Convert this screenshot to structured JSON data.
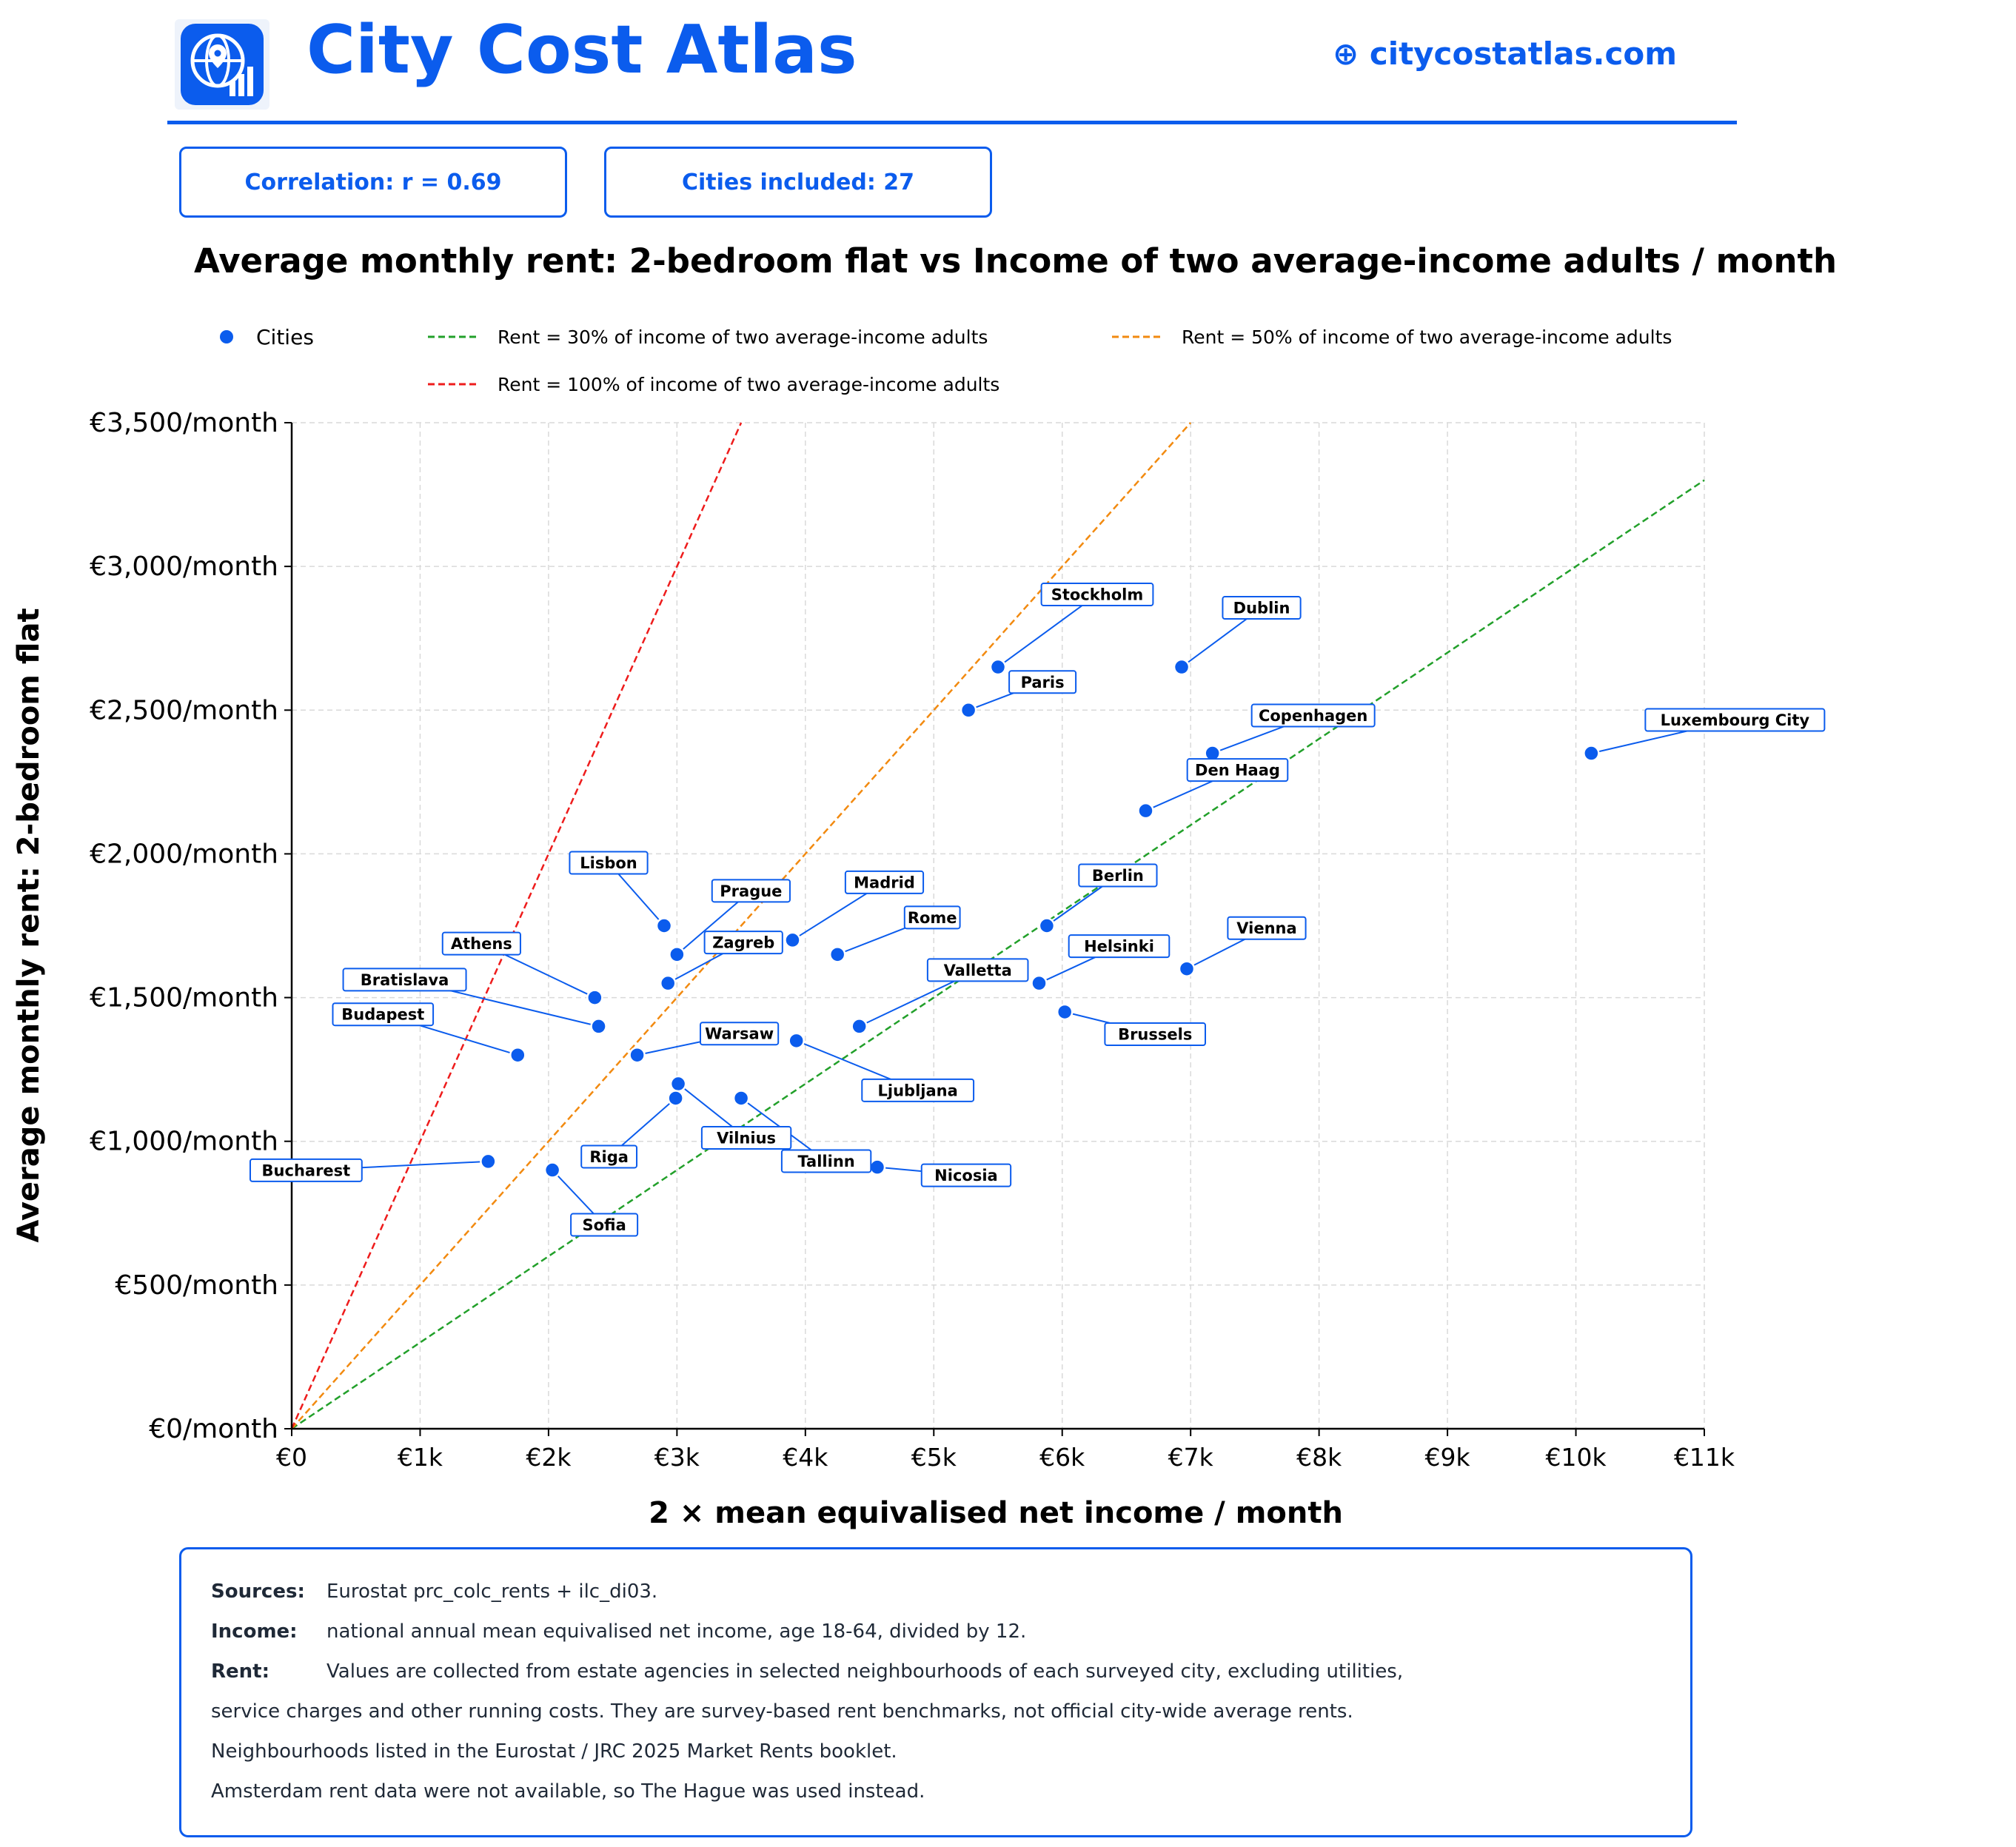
{
  "header": {
    "title": "City Cost Atlas",
    "website": "⊕ citycostatlas.com",
    "logo_icon": "globe-location-chart-icon"
  },
  "stats": {
    "correlation": "Correlation: r = 0.69",
    "cities": "Cities included: 27"
  },
  "notes": {
    "sources_label": "Sources:",
    "sources_text": "Eurostat prc_colc_rents + ilc_di03.",
    "income_label": "Income:",
    "income_text": "national annual mean equivalised net income, age 18-64, divided by 12.",
    "rent_label": "Rent:",
    "rent_text_1": "Values are collected from estate agencies in selected neighbourhoods of each surveyed city, excluding utilities,",
    "rent_text_2": "service charges and other running costs. They are survey-based rent benchmarks, not official city-wide average rents.",
    "line_3": "Neighbourhoods listed in the Eurostat / JRC 2025 Market Rents booklet.",
    "line_4": "Amsterdam rent data were not available, so The Hague was used instead."
  },
  "colors": {
    "accent": "#0b5ced",
    "point": "#0b5ced",
    "line_30": "#22a02a",
    "line_50": "#f28a10",
    "line_100": "#ee1c1c"
  },
  "chart_data": {
    "type": "scatter",
    "title": "Average monthly rent: 2-bedroom flat vs Income of two average-income adults / month",
    "xlabel": "2 × mean equivalised net income / month",
    "ylabel": "Average monthly rent: 2-bedroom flat",
    "xlim": [
      0,
      11000
    ],
    "ylim": [
      0,
      3500
    ],
    "x_ticks": [
      {
        "value": 0,
        "label": "€0"
      },
      {
        "value": 1000,
        "label": "€1k"
      },
      {
        "value": 2000,
        "label": "€2k"
      },
      {
        "value": 3000,
        "label": "€3k"
      },
      {
        "value": 4000,
        "label": "€4k"
      },
      {
        "value": 5000,
        "label": "€5k"
      },
      {
        "value": 6000,
        "label": "€6k"
      },
      {
        "value": 7000,
        "label": "€7k"
      },
      {
        "value": 8000,
        "label": "€8k"
      },
      {
        "value": 9000,
        "label": "€9k"
      },
      {
        "value": 10000,
        "label": "€10k"
      },
      {
        "value": 11000,
        "label": "€11k"
      }
    ],
    "y_ticks": [
      {
        "value": 0,
        "label": "€0/month"
      },
      {
        "value": 500,
        "label": "€500/month"
      },
      {
        "value": 1000,
        "label": "€1,000/month"
      },
      {
        "value": 1500,
        "label": "€1,500/month"
      },
      {
        "value": 2000,
        "label": "€2,000/month"
      },
      {
        "value": 2500,
        "label": "€2,500/month"
      },
      {
        "value": 3000,
        "label": "€3,000/month"
      },
      {
        "value": 3500,
        "label": "€3,500/month"
      }
    ],
    "grid": true,
    "legend_position": "top",
    "legend": [
      {
        "label": "Cities",
        "kind": "point"
      },
      {
        "label": "Rent = 30% of income of two average-income adults",
        "kind": "line",
        "ratio": 0.3
      },
      {
        "label": "Rent = 50% of income of two average-income adults",
        "kind": "line",
        "ratio": 0.5
      },
      {
        "label": "Rent = 100% of income of two average-income adults",
        "kind": "line",
        "ratio": 1.0
      }
    ],
    "points": [
      {
        "label": "Luxembourg City",
        "x": 10120,
        "y": 2350
      },
      {
        "label": "Dublin",
        "x": 6930,
        "y": 2650
      },
      {
        "label": "Copenhagen",
        "x": 7170,
        "y": 2350
      },
      {
        "label": "Den Haag",
        "x": 6650,
        "y": 2150
      },
      {
        "label": "Stockholm",
        "x": 5500,
        "y": 2650
      },
      {
        "label": "Paris",
        "x": 5270,
        "y": 2500
      },
      {
        "label": "Berlin",
        "x": 5880,
        "y": 1750
      },
      {
        "label": "Vienna",
        "x": 6970,
        "y": 1600
      },
      {
        "label": "Helsinki",
        "x": 5820,
        "y": 1550
      },
      {
        "label": "Brussels",
        "x": 6020,
        "y": 1450
      },
      {
        "label": "Valletta",
        "x": 4420,
        "y": 1400
      },
      {
        "label": "Madrid",
        "x": 3900,
        "y": 1700
      },
      {
        "label": "Rome",
        "x": 4250,
        "y": 1650
      },
      {
        "label": "Lisbon",
        "x": 2900,
        "y": 1750
      },
      {
        "label": "Prague",
        "x": 3000,
        "y": 1650
      },
      {
        "label": "Zagreb",
        "x": 2930,
        "y": 1550
      },
      {
        "label": "Athens",
        "x": 2360,
        "y": 1500
      },
      {
        "label": "Bratislava",
        "x": 2390,
        "y": 1400
      },
      {
        "label": "Budapest",
        "x": 1760,
        "y": 1300
      },
      {
        "label": "Warsaw",
        "x": 2690,
        "y": 1300
      },
      {
        "label": "Ljubljana",
        "x": 3930,
        "y": 1350
      },
      {
        "label": "Vilnius",
        "x": 3010,
        "y": 1200
      },
      {
        "label": "Riga",
        "x": 2990,
        "y": 1150
      },
      {
        "label": "Tallinn",
        "x": 3500,
        "y": 1150
      },
      {
        "label": "Nicosia",
        "x": 4560,
        "y": 910
      },
      {
        "label": "Bucharest",
        "x": 1530,
        "y": 930
      },
      {
        "label": "Sofia",
        "x": 2030,
        "y": 900
      }
    ]
  }
}
